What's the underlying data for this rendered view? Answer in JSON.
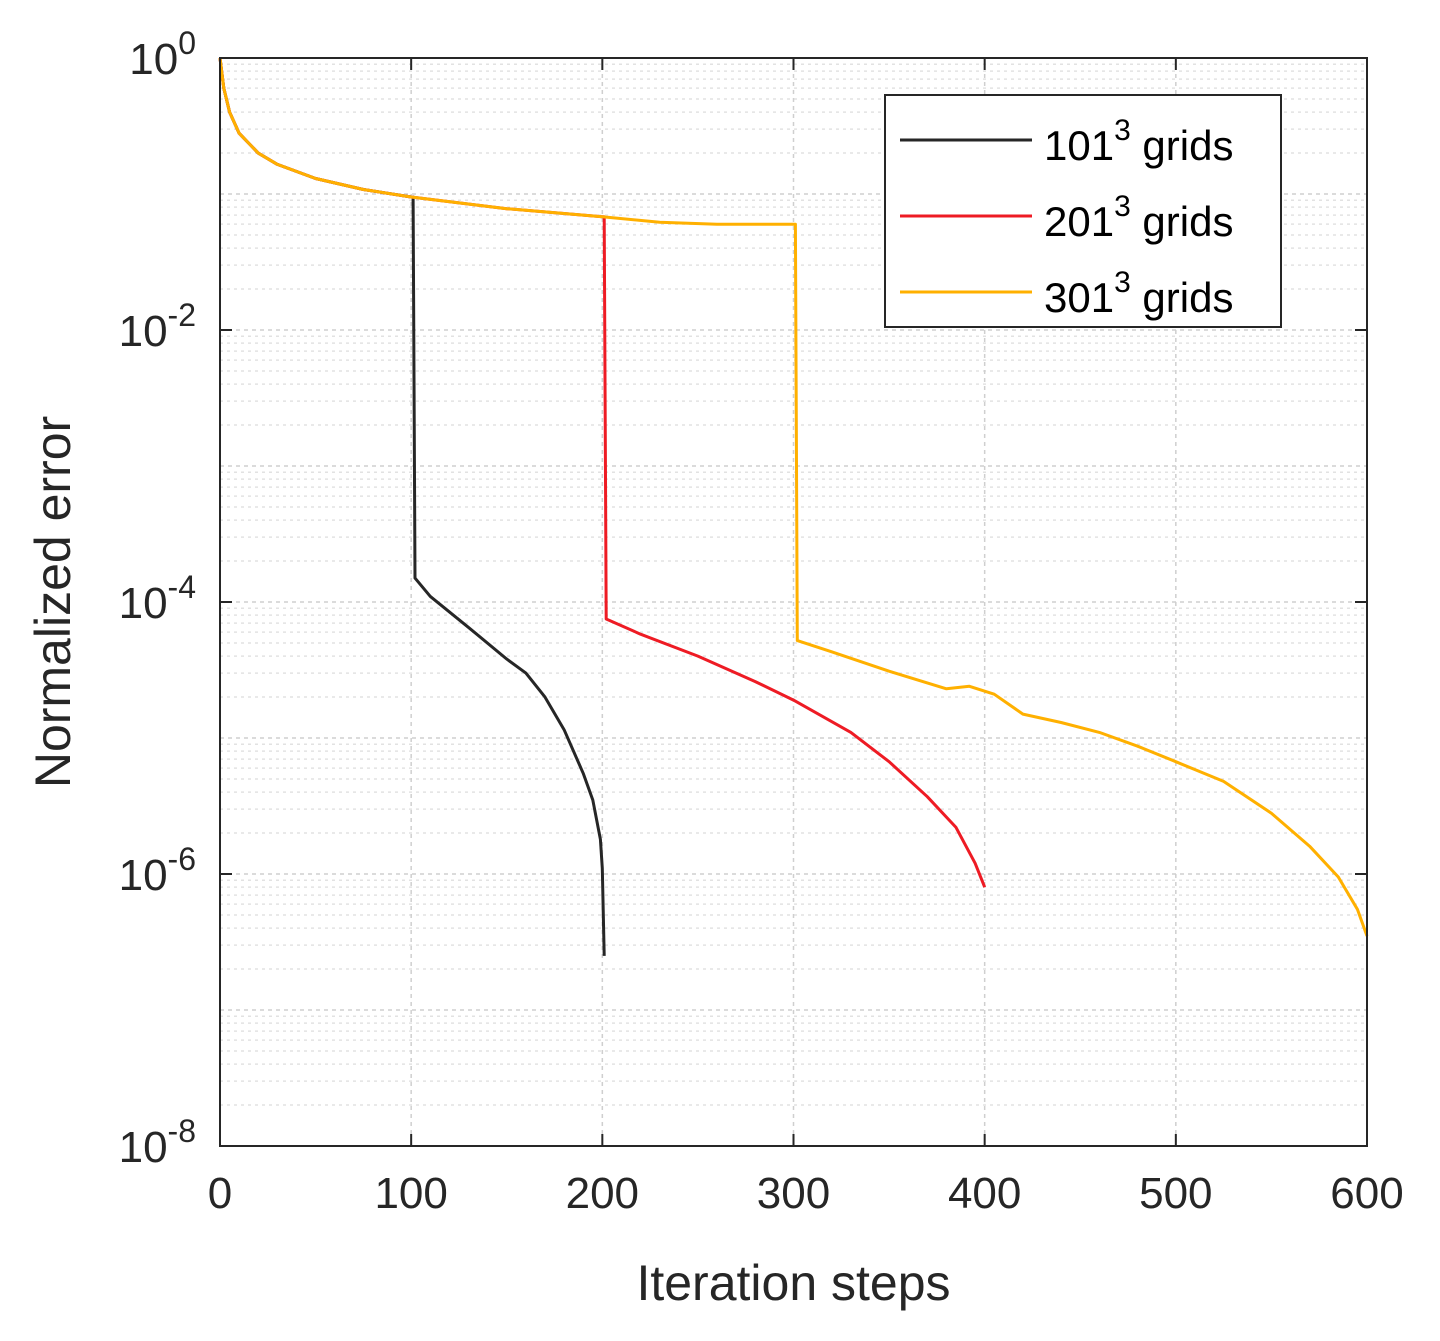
{
  "chart_data": {
    "type": "line",
    "xlabel": "Iteration steps",
    "ylabel": "Normalized error",
    "xlim": [
      0,
      600
    ],
    "ylim": [
      1e-08,
      1
    ],
    "y_scale": "log",
    "grid": "on (major and minor, dashed)",
    "legend_position": "top-right",
    "x_ticks": [
      "0",
      "100",
      "200",
      "300",
      "400",
      "500",
      "600"
    ],
    "y_ticks": [
      {
        "base": "10",
        "exp": "0"
      },
      {
        "base": "10",
        "exp": "-2"
      },
      {
        "base": "10",
        "exp": "-4"
      },
      {
        "base": "10",
        "exp": "-6"
      },
      {
        "base": "10",
        "exp": "-8"
      }
    ],
    "series": [
      {
        "name_base": "101",
        "name_sup": "3",
        "name_suffix": " grids",
        "color": "#262626",
        "points": [
          [
            0,
            1
          ],
          [
            2,
            0.6
          ],
          [
            5,
            0.4
          ],
          [
            10,
            0.28
          ],
          [
            20,
            0.2
          ],
          [
            30,
            0.165
          ],
          [
            50,
            0.13
          ],
          [
            75,
            0.108
          ],
          [
            100,
            0.095
          ],
          [
            101,
            0.095
          ],
          [
            102,
            0.00015
          ],
          [
            110,
            0.00011
          ],
          [
            130,
            6.5e-05
          ],
          [
            150,
            3.8e-05
          ],
          [
            160,
            3e-05
          ],
          [
            170,
            2e-05
          ],
          [
            180,
            1.15e-05
          ],
          [
            190,
            5.5e-06
          ],
          [
            195,
            3.5e-06
          ],
          [
            199,
            1.8e-06
          ],
          [
            200,
            1.1e-06
          ],
          [
            201,
            2.5e-07
          ]
        ]
      },
      {
        "name_base": "201",
        "name_sup": "3",
        "name_suffix": " grids",
        "color": "#ee1b24",
        "points": [
          [
            0,
            1
          ],
          [
            2,
            0.6
          ],
          [
            5,
            0.4
          ],
          [
            10,
            0.28
          ],
          [
            20,
            0.2
          ],
          [
            30,
            0.165
          ],
          [
            50,
            0.13
          ],
          [
            75,
            0.108
          ],
          [
            100,
            0.095
          ],
          [
            150,
            0.078
          ],
          [
            200,
            0.068
          ],
          [
            201,
            0.068
          ],
          [
            202,
            7.5e-05
          ],
          [
            220,
            5.8e-05
          ],
          [
            250,
            4e-05
          ],
          [
            280,
            2.6e-05
          ],
          [
            300,
            1.9e-05
          ],
          [
            330,
            1.1e-05
          ],
          [
            350,
            6.7e-06
          ],
          [
            370,
            3.7e-06
          ],
          [
            385,
            2.2e-06
          ],
          [
            395,
            1.2e-06
          ],
          [
            400,
            8e-07
          ]
        ]
      },
      {
        "name_base": "301",
        "name_sup": "3",
        "name_suffix": " grids",
        "color": "#ffb000",
        "points": [
          [
            0,
            1
          ],
          [
            2,
            0.6
          ],
          [
            5,
            0.4
          ],
          [
            10,
            0.28
          ],
          [
            20,
            0.2
          ],
          [
            30,
            0.165
          ],
          [
            50,
            0.13
          ],
          [
            75,
            0.108
          ],
          [
            100,
            0.095
          ],
          [
            150,
            0.078
          ],
          [
            200,
            0.068
          ],
          [
            230,
            0.062
          ],
          [
            260,
            0.06
          ],
          [
            300,
            0.06
          ],
          [
            301,
            0.06
          ],
          [
            302,
            5.2e-05
          ],
          [
            320,
            4.3e-05
          ],
          [
            350,
            3.1e-05
          ],
          [
            380,
            2.3e-05
          ],
          [
            392,
            2.4e-05
          ],
          [
            405,
            2.1e-05
          ],
          [
            420,
            1.5e-05
          ],
          [
            440,
            1.3e-05
          ],
          [
            460,
            1.1e-05
          ],
          [
            480,
            8.7e-06
          ],
          [
            500,
            6.7e-06
          ],
          [
            525,
            4.8e-06
          ],
          [
            550,
            2.8e-06
          ],
          [
            570,
            1.6e-06
          ],
          [
            585,
            9.5e-07
          ],
          [
            595,
            5.5e-07
          ],
          [
            600,
            3.5e-07
          ]
        ]
      }
    ]
  }
}
